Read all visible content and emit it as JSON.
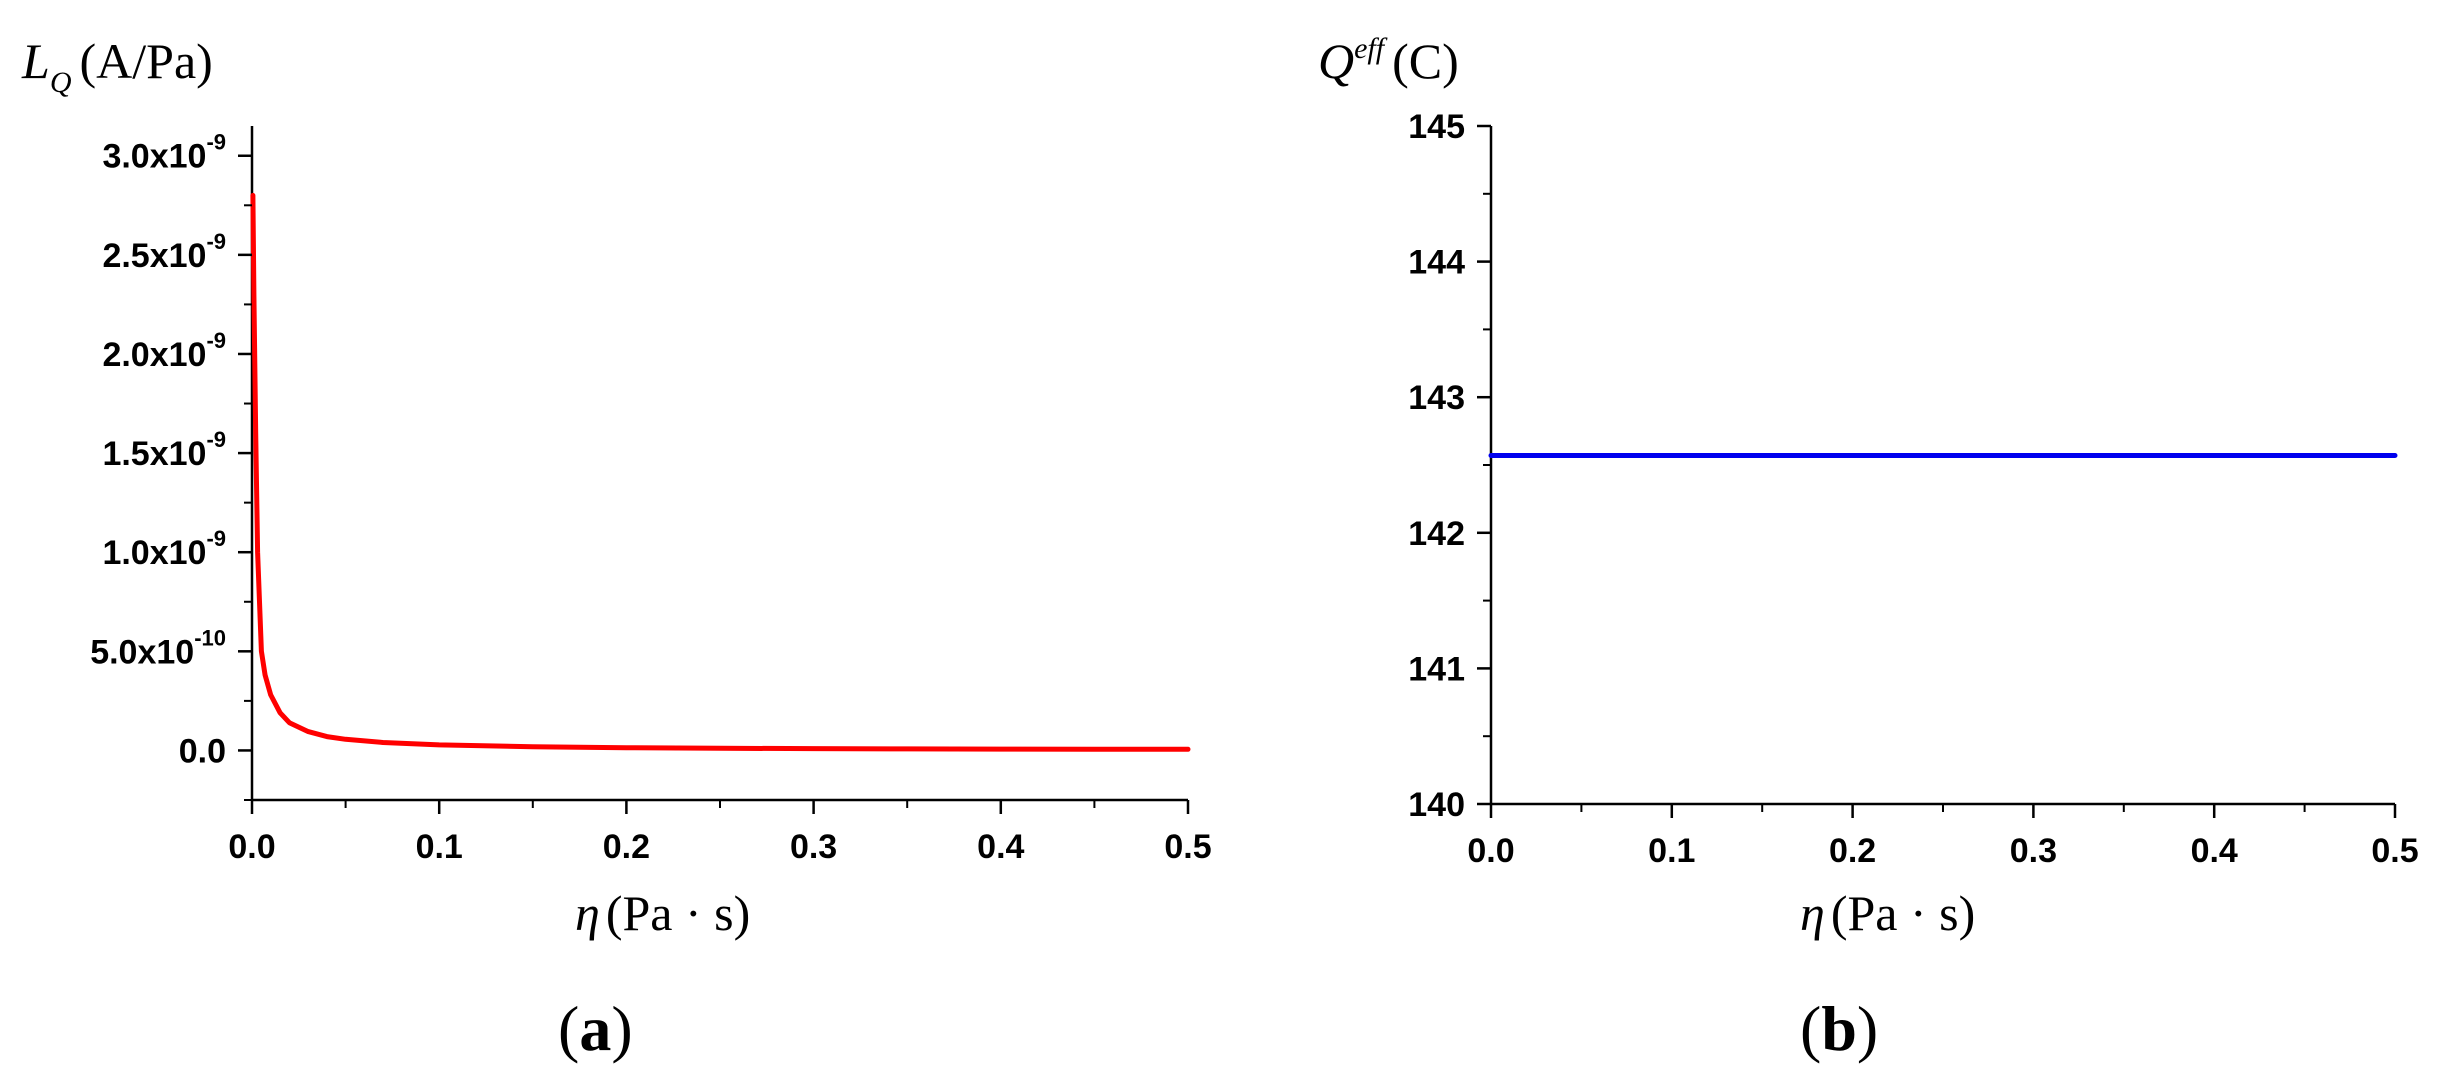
{
  "chart_data": [
    {
      "type": "line",
      "panel": "a",
      "panel_label": "a",
      "ylabel_symbol": "L",
      "ylabel_subscript": "Q",
      "ylabel_unit": "(A/Pa)",
      "xlabel_symbol": "η",
      "xlabel_unit": "(Pa · s)",
      "xlim": [
        0,
        0.5
      ],
      "ylim": [
        -2.5e-10,
        3.15e-09
      ],
      "x_ticks": [
        {
          "v": 0.0,
          "label": "0.0"
        },
        {
          "v": 0.1,
          "label": "0.1"
        },
        {
          "v": 0.2,
          "label": "0.2"
        },
        {
          "v": 0.3,
          "label": "0.3"
        },
        {
          "v": 0.4,
          "label": "0.4"
        },
        {
          "v": 0.5,
          "label": "0.5"
        }
      ],
      "y_ticks": [
        {
          "v": 0.0,
          "mantissa": "0.0",
          "exp": ""
        },
        {
          "v": 5e-10,
          "mantissa": "5.0x10",
          "exp": "-10"
        },
        {
          "v": 1e-09,
          "mantissa": "1.0x10",
          "exp": "-9"
        },
        {
          "v": 1.5e-09,
          "mantissa": "1.5x10",
          "exp": "-9"
        },
        {
          "v": 2e-09,
          "mantissa": "2.0x10",
          "exp": "-9"
        },
        {
          "v": 2.5e-09,
          "mantissa": "2.5x10",
          "exp": "-9"
        },
        {
          "v": 3e-09,
          "mantissa": "3.0x10",
          "exp": "-9"
        }
      ],
      "grid": false,
      "series": [
        {
          "color": "#ff0000",
          "x": [
            0.0005,
            0.001,
            0.002,
            0.003,
            0.005,
            0.007,
            0.01,
            0.015,
            0.02,
            0.03,
            0.04,
            0.05,
            0.07,
            0.1,
            0.15,
            0.2,
            0.25,
            0.3,
            0.35,
            0.4,
            0.45,
            0.5
          ],
          "y": [
            2.8e-09,
            2.3e-09,
            1.6e-09,
            1e-09,
            5e-10,
            3.8e-10,
            2.8e-10,
            1.9e-10,
            1.4e-10,
            9.5e-11,
            7e-11,
            5.6e-11,
            4e-11,
            2.8e-11,
            1.9e-11,
            1.4e-11,
            1.1e-11,
            9.3e-12,
            8e-12,
            7e-12,
            6.2e-12,
            5.6e-12
          ]
        }
      ]
    },
    {
      "type": "line",
      "panel": "b",
      "panel_label": "b",
      "ylabel_symbol": "Q",
      "ylabel_superscript": "eff",
      "ylabel_unit": "(C)",
      "xlabel_symbol": "η",
      "xlabel_unit": "(Pa · s)",
      "xlim": [
        0,
        0.5
      ],
      "ylim": [
        140,
        145
      ],
      "x_ticks": [
        {
          "v": 0.0,
          "label": "0.0"
        },
        {
          "v": 0.1,
          "label": "0.1"
        },
        {
          "v": 0.2,
          "label": "0.2"
        },
        {
          "v": 0.3,
          "label": "0.3"
        },
        {
          "v": 0.4,
          "label": "0.4"
        },
        {
          "v": 0.5,
          "label": "0.5"
        }
      ],
      "y_ticks": [
        {
          "v": 140,
          "mantissa": "140",
          "exp": ""
        },
        {
          "v": 141,
          "mantissa": "141",
          "exp": ""
        },
        {
          "v": 142,
          "mantissa": "142",
          "exp": ""
        },
        {
          "v": 143,
          "mantissa": "143",
          "exp": ""
        },
        {
          "v": 144,
          "mantissa": "144",
          "exp": ""
        },
        {
          "v": 145,
          "mantissa": "145",
          "exp": ""
        }
      ],
      "grid": false,
      "series": [
        {
          "color": "#0000ee",
          "x": [
            0.0,
            0.5
          ],
          "y": [
            142.57,
            142.57
          ]
        }
      ]
    }
  ]
}
